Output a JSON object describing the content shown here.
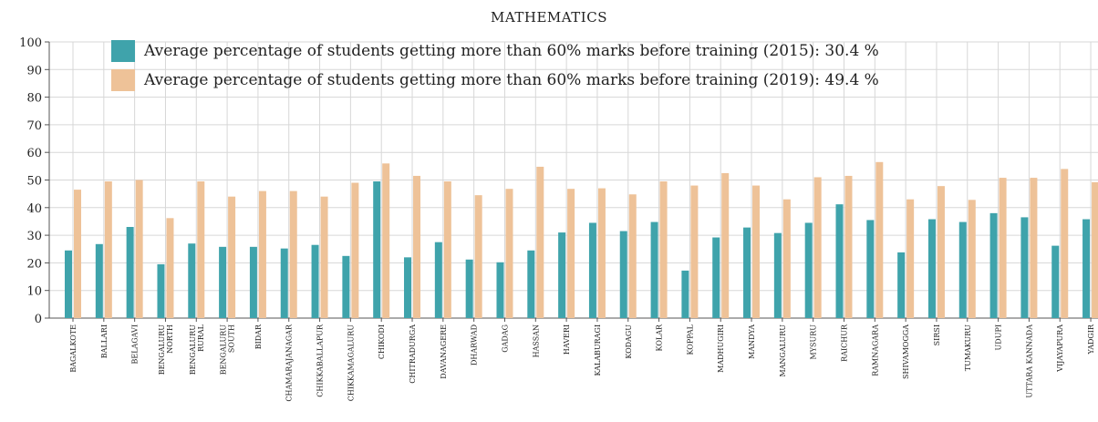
{
  "chart_data": {
    "type": "bar",
    "title": "MATHEMATICS",
    "xlabel": "",
    "ylabel": "",
    "ylim": [
      0,
      100
    ],
    "yticks": [
      0,
      10,
      20,
      30,
      40,
      50,
      60,
      70,
      80,
      90,
      100
    ],
    "grid": true,
    "legend_placement": "top-left",
    "categories": [
      "BAGALKOTE",
      "BALLARI",
      "BELAGAVI",
      "BENGALURU NORTH",
      "BENGALURU RURAL",
      "BENGALURU SOUTH",
      "BIDAR",
      "CHAMARAJANAGAR",
      "CHIKKABALLAPUR",
      "CHIKKAMAGALURU",
      "CHIKODI",
      "CHITRADURGA",
      "DAVANAGERE",
      "DHARWAD",
      "GADAG",
      "HASSAN",
      "HAVERI",
      "KALABURAGI",
      "KODAGU",
      "KOLAR",
      "KOPPAL",
      "MADHUGIRI",
      "MANDYA",
      "MANGALURU",
      "MYSURU",
      "RAICHUR",
      "RAMNAGARA",
      "SHIVAMOGGA",
      "SIRSI",
      "TUMAKURU",
      "UDUPI",
      "UTTARA KANNADA",
      "VIJAYAPURA",
      "YADGIR"
    ],
    "series": [
      {
        "name": "Average percentage of students getting more than 60% marks before training (2015): 30.4 %",
        "color": "#3fa3ab",
        "values": [
          24.5,
          26.8,
          33.0,
          19.5,
          27.0,
          25.8,
          25.8,
          25.2,
          26.5,
          22.5,
          49.5,
          22.0,
          27.5,
          21.2,
          20.2,
          24.5,
          31.0,
          34.5,
          31.5,
          34.8,
          17.2,
          29.2,
          32.8,
          30.8,
          34.5,
          41.2,
          35.5,
          23.8,
          35.8,
          34.8,
          38.0,
          36.5,
          26.2,
          35.8
        ]
      },
      {
        "name": "Average percentage of students getting more than 60% marks before training (2019): 49.4 %",
        "color": "#eec298",
        "values": [
          46.5,
          49.5,
          50.0,
          36.2,
          49.5,
          44.0,
          46.0,
          46.0,
          44.0,
          49.0,
          56.0,
          51.5,
          49.5,
          44.5,
          46.8,
          54.8,
          46.8,
          47.0,
          44.8,
          49.5,
          48.0,
          52.5,
          48.0,
          43.0,
          51.0,
          51.5,
          56.5,
          43.0,
          47.8,
          42.8,
          50.8,
          50.8,
          54.0,
          49.2
        ]
      }
    ]
  },
  "colors": {
    "grid": "#d7d7d7",
    "axis": "#555555",
    "text": "#222222"
  }
}
